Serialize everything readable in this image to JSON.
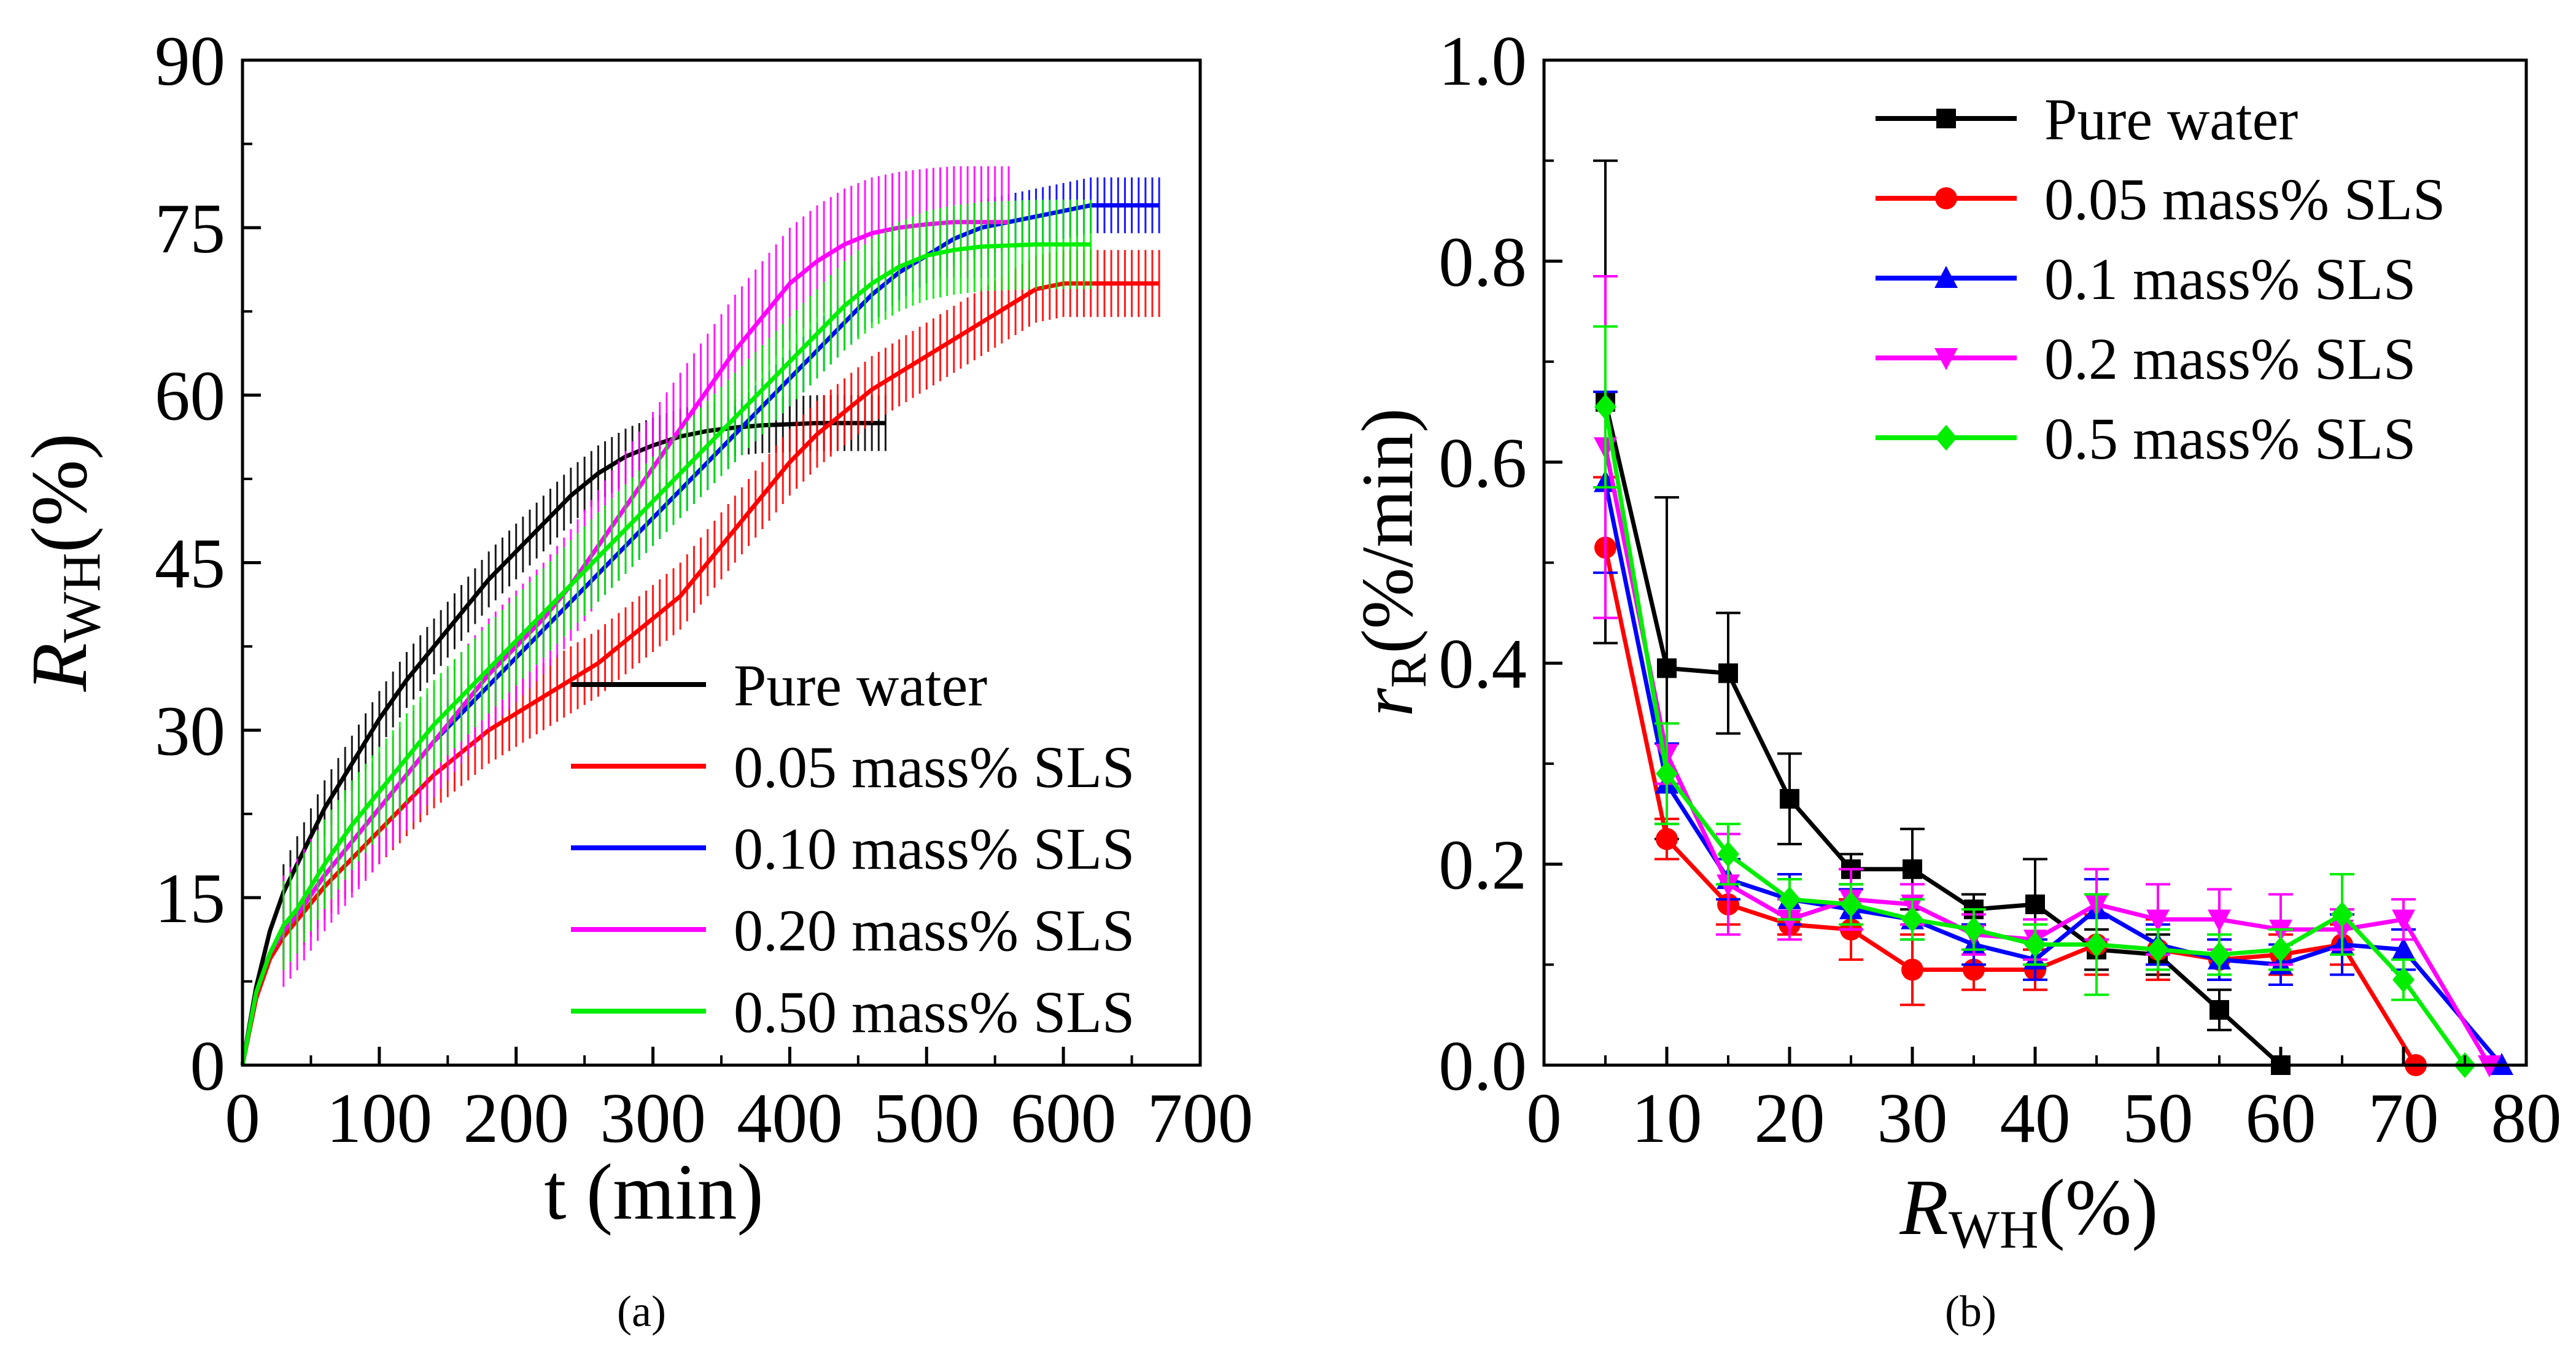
{
  "colors": {
    "pure": "#000000",
    "sls005": "#ff0000",
    "sls010": "#0000ff",
    "sls020": "#ff00ff",
    "sls050": "#00ee00"
  },
  "chart_data": [
    {
      "panel": "(a)",
      "type": "line",
      "title": "",
      "xlabel": "t (min)",
      "ylabel_main": "R",
      "ylabel_sub": "WH",
      "ylabel_tail": "(%)",
      "xlim": [
        0,
        700
      ],
      "ylim": [
        0,
        90
      ],
      "x_ticks": [
        "0",
        "100",
        "200",
        "300",
        "400",
        "500",
        "600",
        "700"
      ],
      "y_ticks": [
        "0",
        "15",
        "30",
        "45",
        "60",
        "75",
        "90"
      ],
      "legend_position": "bottom-right",
      "series": [
        {
          "name": "Pure water",
          "color_key": "pure",
          "x": [
            0,
            10,
            20,
            30,
            40,
            60,
            80,
            100,
            120,
            140,
            160,
            180,
            200,
            220,
            240,
            260,
            280,
            300,
            320,
            340,
            360,
            380,
            400,
            420,
            440,
            460,
            470
          ],
          "y": [
            0,
            7,
            12,
            15.5,
            18,
            23,
            27,
            31,
            34.5,
            37.5,
            40.5,
            43.5,
            46,
            48.5,
            51,
            53,
            54.5,
            55.5,
            56.3,
            56.8,
            57.1,
            57.3,
            57.4,
            57.5,
            57.5,
            57.5,
            57.5
          ],
          "err": 2.5
        },
        {
          "name": "0.05 mass% SLS",
          "color_key": "sls005",
          "x": [
            0,
            10,
            20,
            30,
            40,
            60,
            80,
            100,
            120,
            140,
            160,
            180,
            200,
            220,
            240,
            260,
            280,
            300,
            320,
            340,
            360,
            380,
            400,
            420,
            440,
            460,
            480,
            500,
            520,
            540,
            560,
            580,
            600,
            620,
            640,
            660,
            670
          ],
          "y": [
            0,
            6,
            9.5,
            11.5,
            13,
            16,
            18.5,
            21,
            23.5,
            26,
            28,
            30,
            31.5,
            33,
            34.5,
            36,
            38,
            40,
            42,
            45,
            48,
            51,
            54,
            56.5,
            58.5,
            60.5,
            62,
            63.5,
            65,
            66.5,
            68,
            69.5,
            70,
            70,
            70,
            70,
            70
          ],
          "err": 3
        },
        {
          "name": "0.10 mass% SLS",
          "color_key": "sls010",
          "x": [
            0,
            10,
            20,
            30,
            40,
            60,
            80,
            100,
            120,
            140,
            160,
            180,
            200,
            220,
            240,
            260,
            280,
            300,
            320,
            340,
            360,
            380,
            400,
            420,
            440,
            460,
            480,
            500,
            520,
            540,
            560,
            580,
            600,
            620,
            640,
            660,
            670
          ],
          "y": [
            0,
            6.5,
            10,
            12,
            13.5,
            17,
            20,
            23,
            26,
            29,
            31.5,
            34,
            36.5,
            39,
            41.5,
            44,
            46.5,
            49,
            51.5,
            54,
            56.5,
            59,
            61.5,
            64,
            66.5,
            69,
            71,
            72.5,
            74,
            75,
            75.5,
            76,
            76.5,
            77,
            77,
            77,
            77
          ],
          "err": 2.5
        },
        {
          "name": "0.20 mass% SLS",
          "color_key": "sls020",
          "x": [
            0,
            10,
            20,
            30,
            40,
            60,
            80,
            100,
            120,
            140,
            160,
            180,
            200,
            220,
            240,
            260,
            280,
            300,
            320,
            340,
            360,
            380,
            400,
            420,
            440,
            460,
            480,
            500,
            520,
            540,
            560
          ],
          "y": [
            0,
            6.5,
            10,
            12,
            13.5,
            17,
            20,
            23,
            26,
            29,
            32,
            35,
            37.5,
            40,
            43,
            46.5,
            50,
            53.5,
            57,
            60.5,
            64,
            67,
            70,
            72,
            73.5,
            74.5,
            75,
            75.3,
            75.5,
            75.5,
            75.5
          ],
          "err": 5
        },
        {
          "name": "0.50 mass% SLS",
          "color_key": "sls050",
          "x": [
            0,
            10,
            20,
            30,
            40,
            60,
            80,
            100,
            120,
            140,
            160,
            180,
            200,
            220,
            240,
            260,
            280,
            300,
            320,
            340,
            360,
            380,
            400,
            420,
            440,
            460,
            480,
            500,
            520,
            540,
            560,
            580,
            600,
            620
          ],
          "y": [
            0,
            6.5,
            10,
            12.5,
            14,
            18,
            21.5,
            24.5,
            27.5,
            30.5,
            33,
            35.5,
            38,
            40.5,
            43,
            45.5,
            48,
            50.5,
            53,
            55.5,
            58,
            60.5,
            63,
            65.5,
            68,
            70,
            71.5,
            72.5,
            73,
            73.3,
            73.4,
            73.5,
            73.5,
            73.5
          ],
          "err": 4
        }
      ]
    },
    {
      "panel": "(b)",
      "type": "line",
      "title": "",
      "xlabel_main": "R",
      "xlabel_sub": "WH",
      "xlabel_tail": "(%)",
      "ylabel_main": "r",
      "ylabel_sub": "R",
      "ylabel_tail": "(%/min)",
      "xlim": [
        0,
        80
      ],
      "ylim": [
        0,
        1.0
      ],
      "x_ticks": [
        "0",
        "10",
        "20",
        "30",
        "40",
        "50",
        "60",
        "70",
        "80"
      ],
      "y_ticks": [
        "0.0",
        "0.2",
        "0.4",
        "0.6",
        "0.8",
        "1.0"
      ],
      "legend_position": "top-right",
      "series": [
        {
          "name": "Pure water",
          "color_key": "pure",
          "marker": "square",
          "x": [
            5,
            10,
            15,
            20,
            25,
            30,
            35,
            40,
            45,
            50,
            55,
            60
          ],
          "y": [
            0.66,
            0.395,
            0.39,
            0.265,
            0.195,
            0.195,
            0.155,
            0.16,
            0.115,
            0.11,
            0.055,
            0.0
          ],
          "err": [
            0.24,
            0.17,
            0.06,
            0.045,
            0.015,
            0.04,
            0.015,
            0.045,
            0.02,
            0.02,
            0.02,
            0.0
          ]
        },
        {
          "name": "0.05 mass% SLS",
          "color_key": "sls005",
          "marker": "circle",
          "x": [
            5,
            10,
            15,
            20,
            25,
            30,
            35,
            40,
            45,
            50,
            55,
            60,
            65,
            71
          ],
          "y": [
            0.515,
            0.225,
            0.16,
            0.14,
            0.135,
            0.095,
            0.095,
            0.095,
            0.12,
            0.115,
            0.105,
            0.11,
            0.12,
            0.0
          ],
          "err": [
            0.07,
            0.02,
            0.02,
            0.01,
            0.03,
            0.035,
            0.02,
            0.02,
            0.03,
            0.03,
            0.02,
            0.02,
            0.02,
            0.0
          ]
        },
        {
          "name": "0.1 mass% SLS",
          "color_key": "sls010",
          "marker": "triangle-up",
          "x": [
            5,
            10,
            15,
            20,
            25,
            30,
            35,
            40,
            45,
            50,
            55,
            60,
            65,
            70,
            78
          ],
          "y": [
            0.58,
            0.28,
            0.185,
            0.165,
            0.155,
            0.145,
            0.12,
            0.105,
            0.155,
            0.12,
            0.105,
            0.1,
            0.12,
            0.115,
            0.0
          ],
          "err": [
            0.09,
            0.04,
            0.02,
            0.025,
            0.02,
            0.02,
            0.02,
            0.02,
            0.03,
            0.02,
            0.02,
            0.02,
            0.03,
            0.02,
            0.0
          ]
        },
        {
          "name": "0.2 mass% SLS",
          "color_key": "sls020",
          "marker": "triangle-down",
          "x": [
            5,
            10,
            15,
            20,
            25,
            30,
            35,
            40,
            45,
            50,
            55,
            60,
            65,
            70,
            77
          ],
          "y": [
            0.615,
            0.31,
            0.18,
            0.145,
            0.165,
            0.16,
            0.13,
            0.125,
            0.16,
            0.145,
            0.145,
            0.135,
            0.135,
            0.145,
            0.0
          ],
          "err": [
            0.17,
            0.03,
            0.05,
            0.02,
            0.03,
            0.02,
            0.02,
            0.02,
            0.035,
            0.035,
            0.03,
            0.035,
            0.02,
            0.02,
            0.0
          ]
        },
        {
          "name": "0.5 mass% SLS",
          "color_key": "sls050",
          "marker": "diamond",
          "x": [
            5,
            10,
            15,
            20,
            25,
            30,
            35,
            40,
            45,
            50,
            55,
            60,
            65,
            70,
            75
          ],
          "y": [
            0.655,
            0.29,
            0.21,
            0.165,
            0.16,
            0.145,
            0.135,
            0.12,
            0.12,
            0.115,
            0.11,
            0.115,
            0.15,
            0.085,
            0.0
          ],
          "err": [
            0.08,
            0.05,
            0.03,
            0.02,
            0.02,
            0.02,
            0.02,
            0.02,
            0.05,
            0.02,
            0.02,
            0.02,
            0.04,
            0.02,
            0.0
          ]
        }
      ]
    }
  ],
  "captions": {
    "a": "(a)",
    "b": "(b)"
  }
}
